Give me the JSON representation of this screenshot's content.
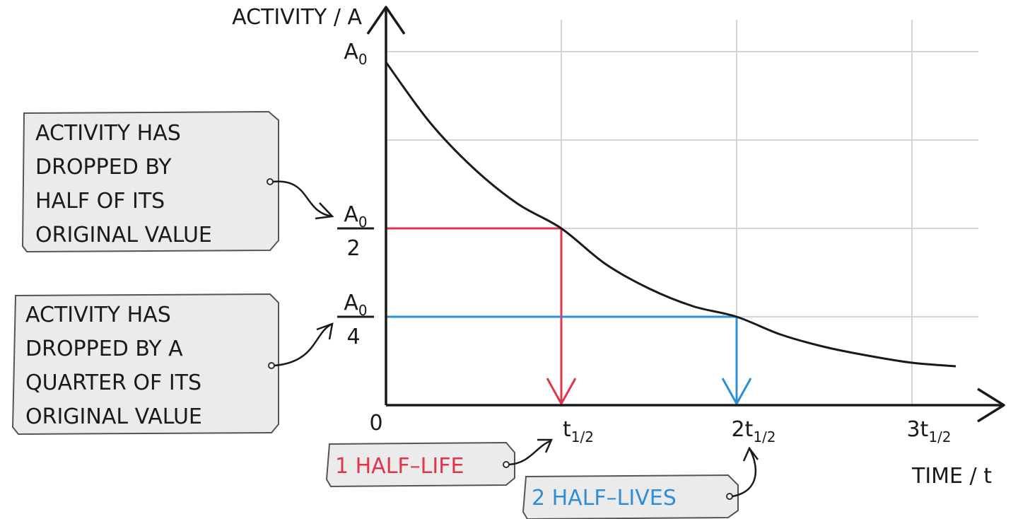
{
  "chart_data": {
    "type": "line",
    "title": "",
    "ylabel": "ACTIVITY / A",
    "xlabel": "TIME / t",
    "origin_label": "0",
    "x_ticks": [
      {
        "value": 1,
        "main": "t",
        "sub": "1/2"
      },
      {
        "value": 2,
        "main": "2t",
        "sub": "1/2"
      },
      {
        "value": 3,
        "main": "3t",
        "sub": "1/2"
      }
    ],
    "y_ticks": [
      {
        "value": 1.0,
        "num": "A",
        "num_sub": "0",
        "den": ""
      },
      {
        "value": 0.5,
        "num": "A",
        "num_sub": "0",
        "den": "2"
      },
      {
        "value": 0.25,
        "num": "A",
        "num_sub": "0",
        "den": "4"
      }
    ],
    "xlim": [
      0,
      3.3
    ],
    "ylim": [
      0,
      1.0
    ],
    "grid": true,
    "series": [
      {
        "x": [
          0,
          0.25,
          0.5,
          0.75,
          1.0,
          1.25,
          1.5,
          1.75,
          2.0,
          2.25,
          2.5,
          2.75,
          3.0,
          3.25
        ],
        "y": [
          0.97,
          0.8,
          0.67,
          0.57,
          0.5,
          0.4,
          0.33,
          0.28,
          0.25,
          0.2,
          0.165,
          0.14,
          0.12,
          0.11
        ]
      }
    ],
    "markers": [
      {
        "t": 1,
        "activity": 0.5,
        "color": "#e0364d"
      },
      {
        "t": 2,
        "activity": 0.25,
        "color": "#2f8fd6"
      }
    ],
    "line_color": "#1a1a1a",
    "grid_color": "#d4d4d4"
  },
  "callouts": {
    "half": [
      "ACTIVITY  HAS",
      "DROPPED  BY",
      "HALF  OF  ITS",
      "ORIGINAL  VALUE"
    ],
    "quarter": [
      "ACTIVITY  HAS",
      "DROPPED  BY  A",
      "QUARTER  OF  ITS",
      "ORIGINAL  VALUE"
    ],
    "one_half_life": "1 HALF–LIFE",
    "two_half_lives": "2 HALF–LIVES"
  },
  "colors": {
    "red": "#e0364d",
    "blue": "#2f8fd6",
    "box_fill": "#ebebeb",
    "box_stroke": "#555555",
    "text": "#1a1a1a"
  }
}
